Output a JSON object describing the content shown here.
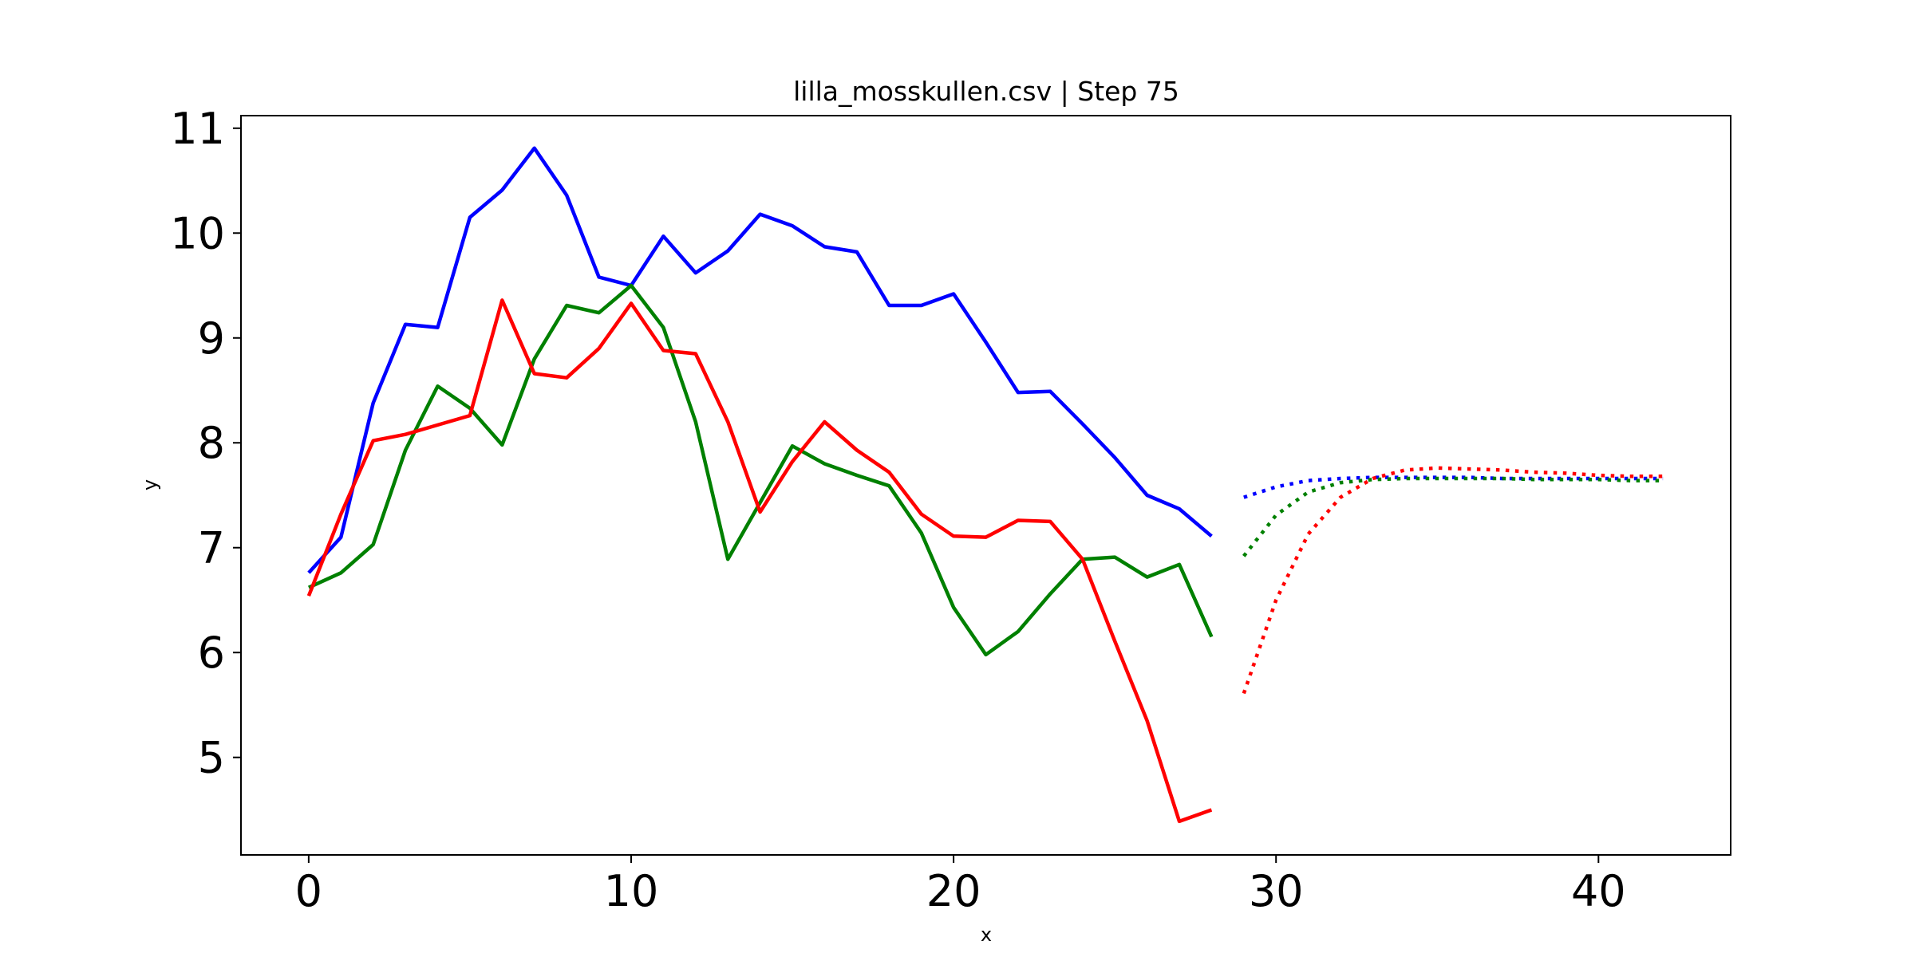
{
  "chart_data": {
    "type": "line",
    "title": "lilla_mosskullen.csv | Step 75",
    "xlabel": "x",
    "ylabel": "y",
    "xlim": [
      -2.1,
      44.1
    ],
    "ylim": [
      4.07,
      11.12
    ],
    "xticks": [
      0,
      10,
      20,
      30,
      40
    ],
    "yticks": [
      5,
      6,
      7,
      8,
      9,
      10,
      11
    ],
    "grid": false,
    "legend": "none",
    "colors": {
      "blue": "#0000ff",
      "green": "#008000",
      "red": "#ff0000"
    },
    "series": [
      {
        "color": "#0000ff",
        "style": "solid",
        "x": [
          0,
          1,
          2,
          3,
          4,
          5,
          6,
          7,
          8,
          9,
          10,
          11,
          12,
          13,
          14,
          15,
          16,
          17,
          18,
          19,
          20,
          21,
          22,
          23,
          24,
          25,
          26,
          27,
          28
        ],
        "values": [
          6.76,
          7.1,
          8.38,
          9.13,
          9.1,
          10.15,
          10.41,
          10.81,
          10.36,
          9.58,
          9.5,
          9.97,
          9.62,
          9.83,
          10.18,
          10.07,
          9.87,
          9.82,
          9.31,
          9.31,
          9.42,
          8.96,
          8.48,
          8.49,
          8.18,
          7.86,
          7.5,
          7.37,
          7.11
        ]
      },
      {
        "color": "#008000",
        "style": "solid",
        "x": [
          0,
          1,
          2,
          3,
          4,
          5,
          6,
          7,
          8,
          9,
          10,
          11,
          12,
          13,
          14,
          15,
          16,
          17,
          18,
          19,
          20,
          21,
          22,
          23,
          24,
          25,
          26,
          27,
          28
        ],
        "values": [
          6.62,
          6.76,
          7.03,
          7.93,
          8.54,
          8.33,
          7.98,
          8.8,
          9.31,
          9.24,
          9.5,
          9.1,
          8.2,
          6.89,
          7.43,
          7.97,
          7.8,
          7.69,
          7.59,
          7.14,
          6.43,
          5.98,
          6.2,
          6.56,
          6.89,
          6.91,
          6.72,
          6.84,
          6.15
        ]
      },
      {
        "color": "#ff0000",
        "style": "solid",
        "x": [
          0,
          1,
          2,
          3,
          4,
          5,
          6,
          7,
          8,
          9,
          10,
          11,
          12,
          13,
          14,
          15,
          16,
          17,
          18,
          19,
          20,
          21,
          22,
          23,
          24,
          25,
          26,
          27,
          28
        ],
        "values": [
          6.54,
          7.32,
          8.02,
          8.08,
          8.17,
          8.26,
          9.36,
          8.66,
          8.62,
          8.9,
          9.33,
          8.88,
          8.85,
          8.2,
          7.34,
          7.82,
          8.2,
          7.93,
          7.72,
          7.32,
          7.11,
          7.1,
          7.26,
          7.25,
          6.89,
          6.11,
          5.35,
          4.39,
          4.5
        ]
      },
      {
        "color": "#0000ff",
        "style": "dotted",
        "x": [
          29,
          30,
          31,
          32,
          33,
          34,
          35,
          36,
          37,
          38,
          39,
          40,
          41,
          42
        ],
        "values": [
          7.48,
          7.58,
          7.64,
          7.66,
          7.67,
          7.67,
          7.67,
          7.67,
          7.66,
          7.66,
          7.66,
          7.66,
          7.66,
          7.66
        ]
      },
      {
        "color": "#008000",
        "style": "dotted",
        "x": [
          29,
          30,
          31,
          32,
          33,
          34,
          35,
          36,
          37,
          38,
          39,
          40,
          41,
          42
        ],
        "values": [
          6.92,
          7.31,
          7.53,
          7.62,
          7.65,
          7.66,
          7.66,
          7.66,
          7.66,
          7.65,
          7.65,
          7.65,
          7.64,
          7.64
        ]
      },
      {
        "color": "#ff0000",
        "style": "dotted",
        "x": [
          29,
          30,
          31,
          32,
          33,
          34,
          35,
          36,
          37,
          38,
          39,
          40,
          41,
          42
        ],
        "values": [
          5.61,
          6.5,
          7.13,
          7.48,
          7.66,
          7.74,
          7.76,
          7.75,
          7.74,
          7.72,
          7.71,
          7.69,
          7.68,
          7.68
        ]
      }
    ]
  }
}
